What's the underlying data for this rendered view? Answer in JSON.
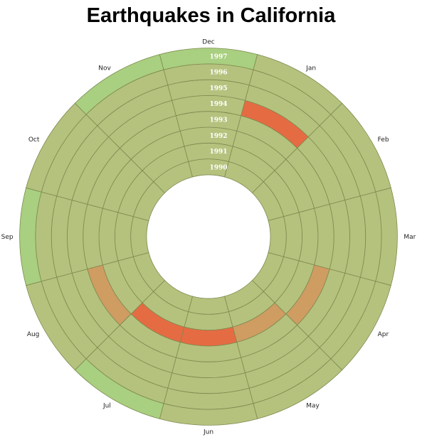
{
  "chart_data": {
    "type": "heatmap",
    "subtype": "radial",
    "title": "Earthquakes in California",
    "months": [
      "Jan",
      "Feb",
      "Mar",
      "Apr",
      "May",
      "Jun",
      "Jul",
      "Aug",
      "Sep",
      "Oct",
      "Nov",
      "Dec"
    ],
    "years": [
      "1990",
      "1991",
      "1992",
      "1993",
      "1994",
      "1995",
      "1996",
      "1997"
    ],
    "cell_value_scale": "0 = none, 1 = medium, 2 = strong",
    "cells": [
      [
        0,
        0,
        0,
        0,
        0,
        0,
        0,
        0,
        0,
        0,
        0,
        0
      ],
      [
        0,
        0,
        0,
        0,
        0,
        0,
        0,
        0,
        0,
        0,
        0,
        0
      ],
      [
        0,
        0,
        0,
        0,
        1,
        2,
        2,
        0,
        0,
        0,
        0,
        0
      ],
      [
        0,
        0,
        0,
        1,
        0,
        0,
        0,
        1,
        0,
        0,
        0,
        0
      ],
      [
        2,
        0,
        0,
        0,
        0,
        0,
        0,
        0,
        0,
        0,
        0,
        0
      ],
      [
        0,
        0,
        0,
        0,
        0,
        0,
        0,
        0,
        0,
        0,
        0,
        0
      ],
      [
        0,
        0,
        0,
        0,
        0,
        0,
        0,
        0,
        0,
        0,
        0,
        0
      ],
      [
        0,
        0,
        0,
        0,
        0,
        0,
        0,
        0,
        0,
        0,
        0,
        0
      ]
    ],
    "colors": {
      "none": "#b5c27e",
      "medium": "#cf9c62",
      "strong": "#e56b43",
      "outer_ring_highlight": "#a9cf80",
      "stroke": "#7d8a4e",
      "year_label": "#ffffff"
    },
    "grid": true,
    "legend": "none"
  }
}
